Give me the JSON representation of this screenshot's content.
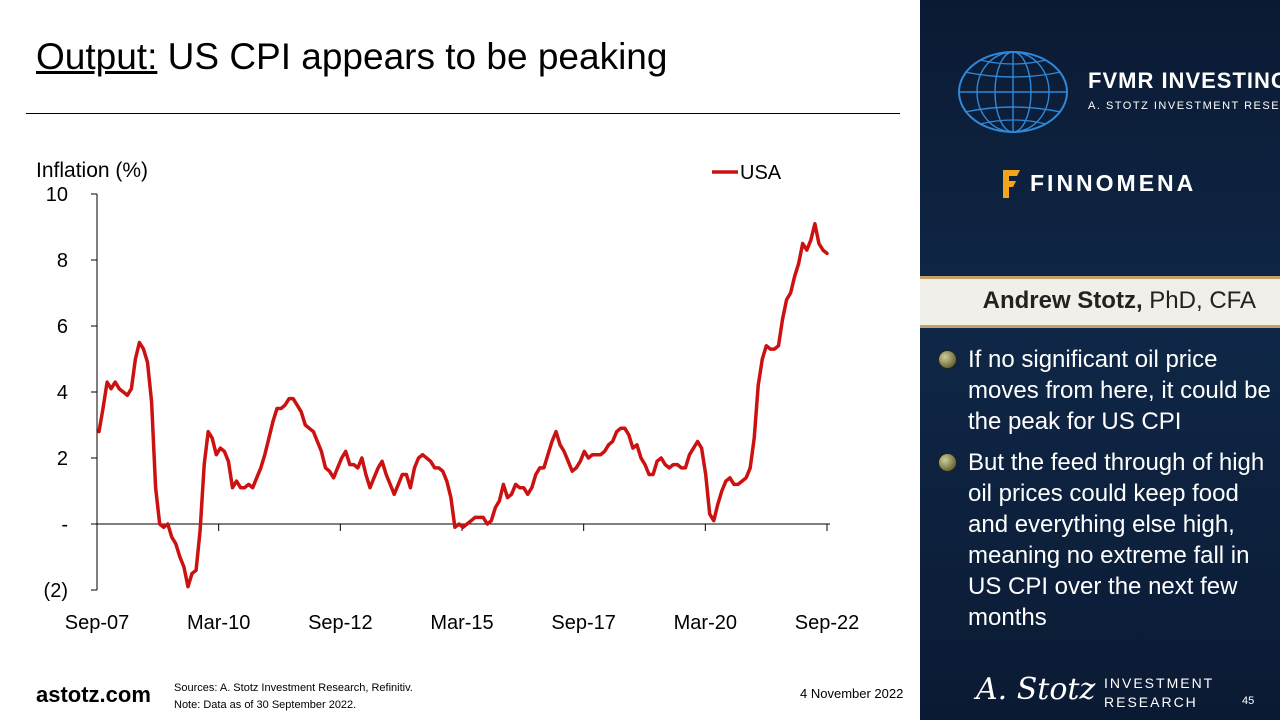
{
  "slide": {
    "title_prefix": "Output:",
    "title_rest": " US CPI appears to be peaking",
    "website": "astotz.com",
    "sources": "Sources: A. Stotz Investment Research, Refinitiv.",
    "note": "Note: Data as of 30 September 2022.",
    "date": "4 November 2022",
    "page_number": "45"
  },
  "sidebar": {
    "brand_name": "FVMR INVESTING",
    "brand_sub": "A. STOTZ INVESTMENT RESEARCH",
    "partner_name": "FINNOMENA",
    "presenter_name": "Andrew Stotz,",
    "presenter_credentials": " PhD, CFA",
    "bullets": [
      "If no significant oil price moves from here, it could be the peak for US CPI",
      "But the feed through of high oil prices could keep food and everything else high, meaning no extreme fall in US CPI over the next few months"
    ],
    "footer_signature": "A. Stotz",
    "footer_line1": "INVESTMENT",
    "footer_line2": "RESEARCH"
  },
  "colors": {
    "series": "#cc1111",
    "sidebar_bg": "#0f2747",
    "banner_accent": "#c4a06a"
  },
  "chart_data": {
    "type": "line",
    "ylabel": "Inflation (%)",
    "ylim": [
      -2,
      10
    ],
    "y_ticks": [
      -2,
      0,
      2,
      4,
      6,
      8,
      10
    ],
    "y_tick_labels": [
      "(2)",
      "-",
      "2",
      "4",
      "6",
      "8",
      "10"
    ],
    "x_tick_labels": [
      "Sep-07",
      "Mar-10",
      "Sep-12",
      "Mar-15",
      "Sep-17",
      "Mar-20",
      "Sep-22"
    ],
    "x_start": "Sep-07",
    "x_end": "Sep-22",
    "legend_position": "top-right",
    "series": [
      {
        "name": "USA",
        "values": [
          2.8,
          3.5,
          4.3,
          4.1,
          4.3,
          4.1,
          4.0,
          3.9,
          4.1,
          5.0,
          5.5,
          5.3,
          4.9,
          3.7,
          1.1,
          0.0,
          -0.1,
          0.0,
          -0.4,
          -0.6,
          -1.0,
          -1.3,
          -1.9,
          -1.5,
          -1.4,
          -0.2,
          1.8,
          2.8,
          2.6,
          2.1,
          2.3,
          2.2,
          1.9,
          1.1,
          1.3,
          1.1,
          1.1,
          1.2,
          1.1,
          1.4,
          1.7,
          2.1,
          2.6,
          3.1,
          3.5,
          3.5,
          3.6,
          3.8,
          3.8,
          3.6,
          3.4,
          3.0,
          2.9,
          2.8,
          2.5,
          2.2,
          1.7,
          1.6,
          1.4,
          1.7,
          2.0,
          2.2,
          1.8,
          1.8,
          1.7,
          2.0,
          1.5,
          1.1,
          1.4,
          1.7,
          1.9,
          1.5,
          1.2,
          0.9,
          1.2,
          1.5,
          1.5,
          1.1,
          1.7,
          2.0,
          2.1,
          2.0,
          1.9,
          1.7,
          1.7,
          1.6,
          1.3,
          0.8,
          -0.1,
          0.0,
          -0.1,
          0.0,
          0.1,
          0.2,
          0.2,
          0.2,
          0.0,
          0.1,
          0.5,
          0.7,
          1.2,
          0.8,
          0.9,
          1.2,
          1.1,
          1.1,
          0.9,
          1.1,
          1.5,
          1.7,
          1.7,
          2.1,
          2.5,
          2.8,
          2.4,
          2.2,
          1.9,
          1.6,
          1.7,
          1.9,
          2.2,
          2.0,
          2.1,
          2.1,
          2.1,
          2.2,
          2.4,
          2.5,
          2.8,
          2.9,
          2.9,
          2.7,
          2.3,
          2.4,
          2.0,
          1.8,
          1.5,
          1.5,
          1.9,
          2.0,
          1.8,
          1.7,
          1.8,
          1.8,
          1.7,
          1.7,
          2.1,
          2.3,
          2.5,
          2.3,
          1.5,
          0.3,
          0.1,
          0.6,
          1.0,
          1.3,
          1.4,
          1.2,
          1.2,
          1.3,
          1.4,
          1.7,
          2.6,
          4.2,
          5.0,
          5.4,
          5.3,
          5.3,
          5.4,
          6.2,
          6.8,
          7.0,
          7.5,
          7.9,
          8.5,
          8.3,
          8.6,
          9.1,
          8.5,
          8.3,
          8.2
        ]
      }
    ]
  }
}
